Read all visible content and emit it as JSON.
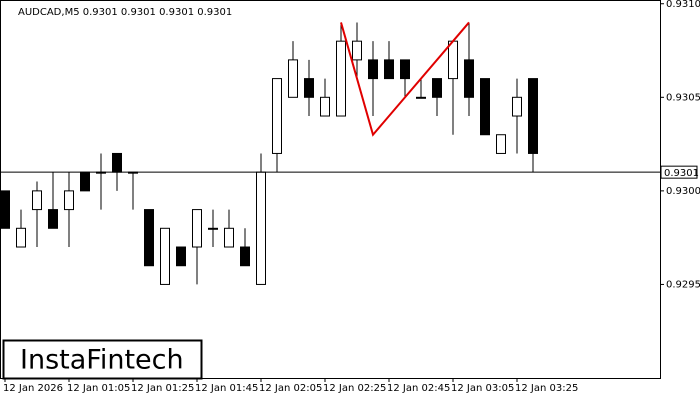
{
  "chart_data": {
    "type": "candlestick",
    "title": "AUDCAD,M5  0.9301 0.9301 0.9301 0.9301",
    "categories": [
      "12 Jan 2026",
      null,
      null,
      null,
      "12 Jan 01:05",
      null,
      null,
      null,
      "12 Jan 01:25",
      null,
      null,
      null,
      "12 Jan 01:45",
      null,
      null,
      null,
      "12 Jan 02:05",
      null,
      null,
      null,
      "12 Jan 02:25",
      null,
      null,
      null,
      "12 Jan 02:45",
      null,
      null,
      null,
      "12 Jan 03:05",
      null,
      null,
      null,
      "12 Jan 03:25",
      null
    ],
    "open": [
      0.93,
      0.9297,
      0.9299,
      0.9299,
      0.9299,
      0.9301,
      0.9301,
      0.9302,
      0.9301,
      0.9299,
      0.9295,
      0.9297,
      0.9297,
      0.9298,
      0.9297,
      0.9297,
      0.9295,
      0.9302,
      0.9305,
      0.9306,
      0.9304,
      0.9304,
      0.9307,
      0.9307,
      0.9307,
      0.9307,
      0.9305,
      0.9306,
      0.9306,
      0.9307,
      0.9306,
      0.9302,
      0.9304,
      0.9306
    ],
    "high": [
      0.93,
      0.9299,
      0.93005,
      0.9301,
      0.9301,
      0.9301,
      0.9302,
      0.9302,
      0.9301,
      0.9299,
      0.9298,
      0.9297,
      0.9299,
      0.9299,
      0.9299,
      0.9298,
      0.9302,
      0.9306,
      0.9308,
      0.9307,
      0.9306,
      0.9309,
      0.9309,
      0.9308,
      0.9308,
      0.9307,
      0.9306,
      0.9306,
      0.9308,
      0.9309,
      0.9306,
      0.9303,
      0.9306,
      0.9306
    ],
    "low": [
      0.9298,
      0.9297,
      0.9297,
      0.9298,
      0.9297,
      0.93,
      0.9299,
      0.93,
      0.9299,
      0.9296,
      0.9295,
      0.9296,
      0.9295,
      0.9297,
      0.9297,
      0.9296,
      0.9295,
      0.9301,
      0.9305,
      0.9304,
      0.9304,
      0.9304,
      0.9306,
      0.9304,
      0.9306,
      0.9305,
      0.9305,
      0.9304,
      0.9303,
      0.9304,
      0.9303,
      0.9302,
      0.9302,
      0.9301
    ],
    "close": [
      0.9298,
      0.9298,
      0.93,
      0.9298,
      0.93,
      0.93,
      0.9301,
      0.9301,
      0.9301,
      0.9296,
      0.9298,
      0.9296,
      0.9299,
      0.9298,
      0.9298,
      0.9296,
      0.9301,
      0.9306,
      0.9307,
      0.9305,
      0.9305,
      0.9308,
      0.9308,
      0.9306,
      0.9306,
      0.9306,
      0.9305,
      0.9305,
      0.9308,
      0.9305,
      0.9303,
      0.9303,
      0.9305,
      0.9302
    ],
    "up_color": "#ffffff",
    "down_color": "#000000",
    "ylim": [
      0.929,
      0.93102
    ],
    "yticks": [
      {
        "value": 0.931,
        "label": "0.9310"
      },
      0.9305,
      {
        "value": 0.93,
        "label": "0.9300"
      },
      0.9295
    ],
    "last_price": 0.9301,
    "pattern": {
      "color": "#e00000",
      "index": [
        21,
        23,
        29
      ],
      "values": [
        0.9309,
        0.9303,
        0.9309
      ]
    }
  },
  "logo": "InstaFintech"
}
